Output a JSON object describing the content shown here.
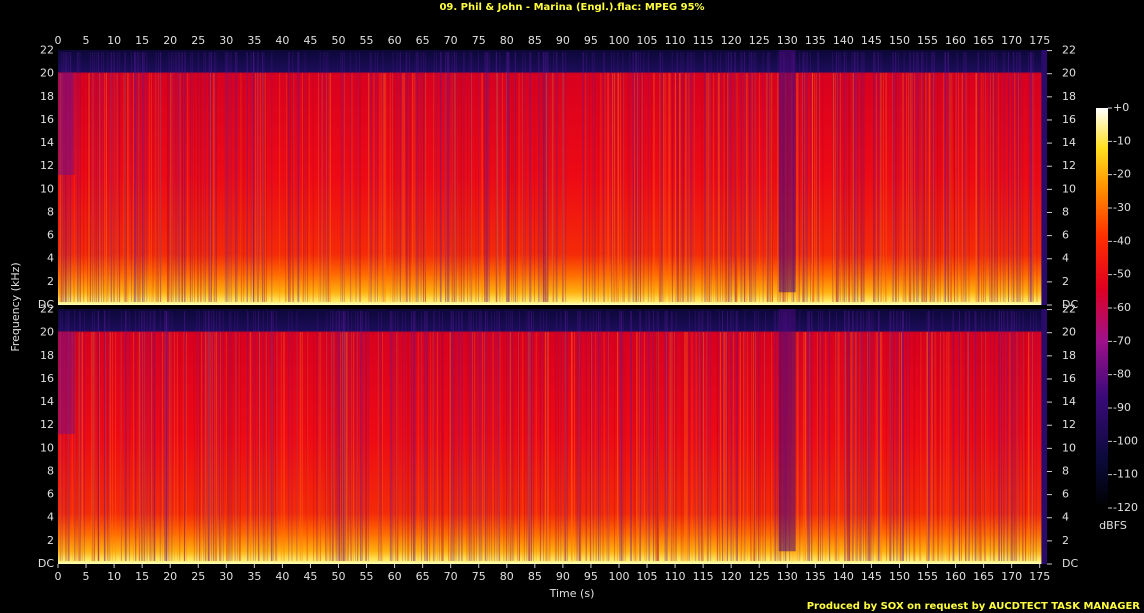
{
  "chart_data": {
    "type": "spectrogram",
    "title": "09. Phil & John - Marina (Engl.).flac: MPEG 95%",
    "x_label": "Time (s)",
    "y_label": "Frequency (kHz)",
    "xlim": [
      0,
      176.3
    ],
    "xticks": [
      0,
      5,
      10,
      15,
      20,
      25,
      30,
      35,
      40,
      45,
      50,
      55,
      60,
      65,
      70,
      75,
      80,
      85,
      90,
      95,
      100,
      105,
      110,
      115,
      120,
      125,
      130,
      135,
      140,
      145,
      150,
      155,
      160,
      165,
      170,
      175
    ],
    "ylim": [
      0,
      22.05
    ],
    "yticks": [
      {
        "value": 0,
        "label": "DC"
      },
      2,
      4,
      6,
      8,
      10,
      12,
      14,
      16,
      18,
      20,
      22
    ],
    "zlim": [
      -120,
      0
    ],
    "zticks": [
      {
        "value": 0,
        "label": "+0"
      },
      -10,
      -20,
      -30,
      -40,
      -50,
      -60,
      -70,
      -80,
      -90,
      -100,
      -110,
      -120
    ],
    "colorbar_label": "dBFS",
    "footer": "Produced by SOX on request by AUCDTECT TASK MANAGER"
  }
}
